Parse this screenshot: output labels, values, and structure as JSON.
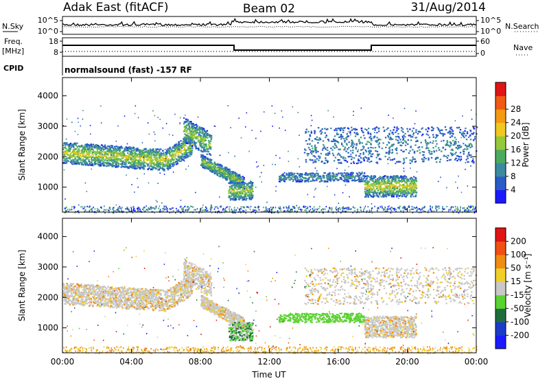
{
  "header": {
    "station": "Adak East (fitACF)",
    "beam": "Beam 02",
    "date": "31/Aug/2014"
  },
  "status_panels": {
    "nsky_label": "N.Sky",
    "nsearch_label": "N.Search",
    "freq_label_top": "Freq.",
    "freq_label_bottom": "[MHz]",
    "nave_label": "Nave",
    "cpid_label": "CPID",
    "noise_ticks": [
      "10^5",
      "10^0"
    ],
    "freq_ticks": [
      "18",
      "8"
    ],
    "nave_ticks": [
      "60",
      "0"
    ],
    "cpid_text": "normalsound (fast) -157 RF"
  },
  "chart_data": [
    {
      "type": "heatmap",
      "name": "power",
      "ylabel": "Slant Range [km]",
      "ylim": [
        180,
        4600
      ],
      "yticks": [
        "1000",
        "2000",
        "3000",
        "4000"
      ],
      "xlim": [
        0,
        24
      ],
      "colorbar": {
        "label": "Power [dB]",
        "ticks": [
          "4",
          "8",
          "12",
          "16",
          "20",
          "24",
          "28"
        ],
        "colors": [
          "#1a1aff",
          "#2a5cc8",
          "#3c8aa0",
          "#4caa60",
          "#96c83c",
          "#f0c820",
          "#f59a14",
          "#f05a14",
          "#e01414"
        ]
      },
      "echo_regions": [
        {
          "t0": 0.0,
          "t1": 7.5,
          "r0": 1500,
          "r1": 2600,
          "level": 0.6
        },
        {
          "t0": 7.0,
          "t1": 8.6,
          "r0": 2300,
          "r1": 3500,
          "level": 0.5
        },
        {
          "t0": 8.0,
          "t1": 10.5,
          "r0": 1200,
          "r1": 2100,
          "level": 0.5
        },
        {
          "t0": 9.6,
          "t1": 11.0,
          "r0": 600,
          "r1": 1200,
          "level": 0.55
        },
        {
          "t0": 12.5,
          "t1": 17.5,
          "r0": 1200,
          "r1": 1500,
          "level": 0.2
        },
        {
          "t0": 17.5,
          "t1": 20.5,
          "r0": 700,
          "r1": 1400,
          "level": 0.65
        },
        {
          "t0": 14.0,
          "t1": 24.0,
          "r0": 1800,
          "r1": 3000,
          "level": 0.15
        }
      ]
    },
    {
      "type": "heatmap",
      "name": "velocity",
      "ylabel": "Slant Range [km]",
      "ylim": [
        180,
        4600
      ],
      "yticks": [
        "1000",
        "2000",
        "3000",
        "4000"
      ],
      "xlim": [
        0,
        24
      ],
      "xticks": [
        "00:00",
        "04:00",
        "08:00",
        "12:00",
        "16:00",
        "20:00",
        "00:00"
      ],
      "xlabel": "Time UT",
      "colorbar": {
        "label": "Velocity [m s⁻¹]",
        "ticks": [
          "200",
          "100",
          "50",
          "15",
          "-15",
          "-50",
          "-100",
          "-200"
        ],
        "colors": [
          "#1a1aff",
          "#1a3cc8",
          "#1e6e3c",
          "#5ad232",
          "#c8c8c8",
          "#f0d028",
          "#f08c14",
          "#f05014",
          "#e01414"
        ]
      }
    }
  ]
}
